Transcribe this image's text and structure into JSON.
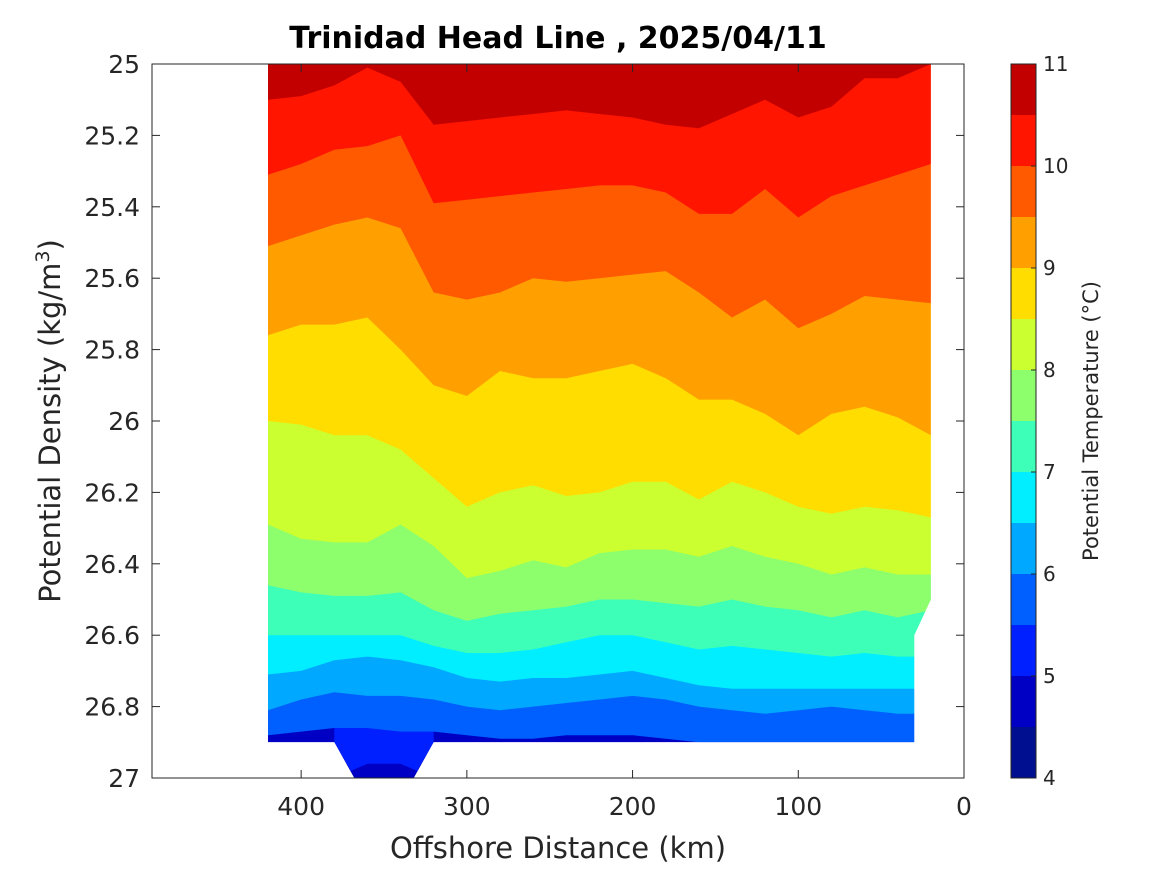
{
  "chart_data": {
    "type": "filled-contour",
    "title": "Trinidad Head Line , 2025/04/11",
    "xlabel": "Offshore Distance (km)",
    "ylabel_main": "Potential Density (kg/m",
    "ylabel_sup": "3",
    "ylabel_close": ")",
    "x_reversed": true,
    "y_reversed": true,
    "xlim": [
      0,
      490
    ],
    "ylim": [
      25,
      27
    ],
    "x_ticks": [
      400,
      300,
      200,
      100,
      0
    ],
    "y_ticks": [
      25,
      25.2,
      25.4,
      25.6,
      25.8,
      26,
      26.2,
      26.4,
      26.6,
      26.8,
      27
    ],
    "x_tick_labels": [
      "400",
      "300",
      "200",
      "100",
      "0"
    ],
    "y_tick_labels": [
      "25",
      "25.2",
      "25.4",
      "25.6",
      "25.8",
      "26",
      "26.2",
      "26.4",
      "26.6",
      "26.8",
      "27"
    ],
    "colorbar": {
      "label": "Potential Temperature (°C)",
      "min": 4,
      "max": 11,
      "step": 0.5,
      "tick_values": [
        4,
        5,
        6,
        7,
        8,
        9,
        10,
        11
      ],
      "tick_labels": [
        "4",
        "5",
        "6",
        "7",
        "8",
        "9",
        "10",
        "11"
      ],
      "colors": [
        "#000f8f",
        "#0000c4",
        "#0020ff",
        "#0060ff",
        "#00a8ff",
        "#00eeff",
        "#3effb8",
        "#8eff6c",
        "#ccff30",
        "#ffdd00",
        "#ffa000",
        "#ff5a00",
        "#ff1500",
        "#c30000"
      ]
    },
    "data_extent": {
      "offshore_km": [
        20,
        420
      ],
      "deep_dip_km": [
        320,
        380
      ],
      "deep_dip_bottom_density": 27.0,
      "main_bottom_density": 26.9
    },
    "bands": [
      {
        "temp_range": [
          10.5,
          11.0
        ],
        "color": "#c30000",
        "lower_boundary": [
          [
            420,
            25.1
          ],
          [
            400,
            25.09
          ],
          [
            380,
            25.06
          ],
          [
            360,
            25.01
          ],
          [
            340,
            25.05
          ],
          [
            320,
            25.17
          ],
          [
            300,
            25.16
          ],
          [
            280,
            25.15
          ],
          [
            260,
            25.14
          ],
          [
            240,
            25.13
          ],
          [
            220,
            25.14
          ],
          [
            200,
            25.15
          ],
          [
            180,
            25.17
          ],
          [
            160,
            25.18
          ],
          [
            140,
            25.14
          ],
          [
            120,
            25.1
          ],
          [
            100,
            25.15
          ],
          [
            80,
            25.12
          ],
          [
            60,
            25.04
          ],
          [
            40,
            25.04
          ],
          [
            20,
            25.0
          ]
        ]
      },
      {
        "temp_range": [
          10.0,
          10.5
        ],
        "color": "#ff1500",
        "lower_boundary": [
          [
            420,
            25.31
          ],
          [
            400,
            25.28
          ],
          [
            380,
            25.24
          ],
          [
            360,
            25.23
          ],
          [
            340,
            25.2
          ],
          [
            320,
            25.39
          ],
          [
            300,
            25.38
          ],
          [
            280,
            25.37
          ],
          [
            260,
            25.36
          ],
          [
            240,
            25.35
          ],
          [
            220,
            25.34
          ],
          [
            200,
            25.34
          ],
          [
            180,
            25.36
          ],
          [
            160,
            25.42
          ],
          [
            140,
            25.42
          ],
          [
            120,
            25.35
          ],
          [
            100,
            25.43
          ],
          [
            80,
            25.37
          ],
          [
            60,
            25.34
          ],
          [
            40,
            25.31
          ],
          [
            20,
            25.28
          ]
        ]
      },
      {
        "temp_range": [
          9.5,
          10.0
        ],
        "color": "#ff5a00",
        "lower_boundary": [
          [
            420,
            25.51
          ],
          [
            400,
            25.48
          ],
          [
            380,
            25.45
          ],
          [
            360,
            25.43
          ],
          [
            340,
            25.46
          ],
          [
            320,
            25.64
          ],
          [
            300,
            25.66
          ],
          [
            280,
            25.64
          ],
          [
            260,
            25.6
          ],
          [
            240,
            25.61
          ],
          [
            220,
            25.6
          ],
          [
            200,
            25.59
          ],
          [
            180,
            25.58
          ],
          [
            160,
            25.64
          ],
          [
            140,
            25.71
          ],
          [
            120,
            25.66
          ],
          [
            100,
            25.74
          ],
          [
            80,
            25.7
          ],
          [
            60,
            25.65
          ],
          [
            40,
            25.66
          ],
          [
            20,
            25.67
          ]
        ]
      },
      {
        "temp_range": [
          9.0,
          9.5
        ],
        "color": "#ffa000",
        "lower_boundary": [
          [
            420,
            25.76
          ],
          [
            400,
            25.73
          ],
          [
            380,
            25.73
          ],
          [
            360,
            25.71
          ],
          [
            340,
            25.8
          ],
          [
            320,
            25.9
          ],
          [
            300,
            25.93
          ],
          [
            280,
            25.86
          ],
          [
            260,
            25.88
          ],
          [
            240,
            25.88
          ],
          [
            220,
            25.86
          ],
          [
            200,
            25.84
          ],
          [
            180,
            25.88
          ],
          [
            160,
            25.94
          ],
          [
            140,
            25.94
          ],
          [
            120,
            25.98
          ],
          [
            100,
            26.04
          ],
          [
            80,
            25.98
          ],
          [
            60,
            25.96
          ],
          [
            40,
            25.99
          ],
          [
            20,
            26.04
          ]
        ]
      },
      {
        "temp_range": [
          8.5,
          9.0
        ],
        "color": "#ffdd00",
        "lower_boundary": [
          [
            420,
            26.0
          ],
          [
            400,
            26.01
          ],
          [
            380,
            26.04
          ],
          [
            360,
            26.04
          ],
          [
            340,
            26.08
          ],
          [
            320,
            26.16
          ],
          [
            300,
            26.24
          ],
          [
            280,
            26.2
          ],
          [
            260,
            26.18
          ],
          [
            240,
            26.21
          ],
          [
            220,
            26.2
          ],
          [
            200,
            26.17
          ],
          [
            180,
            26.17
          ],
          [
            160,
            26.22
          ],
          [
            140,
            26.17
          ],
          [
            120,
            26.2
          ],
          [
            100,
            26.24
          ],
          [
            80,
            26.26
          ],
          [
            60,
            26.24
          ],
          [
            40,
            26.25
          ],
          [
            20,
            26.27
          ]
        ]
      },
      {
        "temp_range": [
          8.0,
          8.5
        ],
        "color": "#ccff30",
        "lower_boundary": [
          [
            420,
            26.29
          ],
          [
            400,
            26.33
          ],
          [
            380,
            26.34
          ],
          [
            360,
            26.34
          ],
          [
            340,
            26.29
          ],
          [
            320,
            26.35
          ],
          [
            300,
            26.44
          ],
          [
            280,
            26.42
          ],
          [
            260,
            26.39
          ],
          [
            240,
            26.41
          ],
          [
            220,
            26.37
          ],
          [
            200,
            26.36
          ],
          [
            180,
            26.36
          ],
          [
            160,
            26.38
          ],
          [
            140,
            26.35
          ],
          [
            120,
            26.38
          ],
          [
            100,
            26.4
          ],
          [
            80,
            26.43
          ],
          [
            60,
            26.41
          ],
          [
            40,
            26.43
          ],
          [
            20,
            26.43
          ]
        ]
      },
      {
        "temp_range": [
          7.5,
          8.0
        ],
        "color": "#8eff6c",
        "lower_boundary": [
          [
            420,
            26.46
          ],
          [
            400,
            26.48
          ],
          [
            380,
            26.49
          ],
          [
            360,
            26.49
          ],
          [
            340,
            26.48
          ],
          [
            320,
            26.53
          ],
          [
            300,
            26.56
          ],
          [
            280,
            26.54
          ],
          [
            260,
            26.53
          ],
          [
            240,
            26.52
          ],
          [
            220,
            26.5
          ],
          [
            200,
            26.5
          ],
          [
            180,
            26.51
          ],
          [
            160,
            26.52
          ],
          [
            140,
            26.5
          ],
          [
            120,
            26.52
          ],
          [
            100,
            26.53
          ],
          [
            80,
            26.55
          ],
          [
            60,
            26.53
          ],
          [
            40,
            26.55
          ],
          [
            20,
            26.53
          ]
        ]
      },
      {
        "temp_range": [
          7.0,
          7.5
        ],
        "color": "#3effb8",
        "lower_boundary": [
          [
            420,
            26.6
          ],
          [
            400,
            26.6
          ],
          [
            380,
            26.6
          ],
          [
            360,
            26.6
          ],
          [
            340,
            26.6
          ],
          [
            320,
            26.63
          ],
          [
            300,
            26.65
          ],
          [
            280,
            26.65
          ],
          [
            260,
            26.64
          ],
          [
            240,
            26.62
          ],
          [
            220,
            26.6
          ],
          [
            200,
            26.6
          ],
          [
            180,
            26.62
          ],
          [
            160,
            26.64
          ],
          [
            140,
            26.63
          ],
          [
            120,
            26.64
          ],
          [
            100,
            26.65
          ],
          [
            80,
            26.66
          ],
          [
            60,
            26.65
          ],
          [
            40,
            26.66
          ],
          [
            20,
            26.66
          ]
        ]
      },
      {
        "temp_range": [
          6.5,
          7.0
        ],
        "color": "#00eeff",
        "lower_boundary": [
          [
            420,
            26.71
          ],
          [
            400,
            26.7
          ],
          [
            380,
            26.67
          ],
          [
            360,
            26.66
          ],
          [
            340,
            26.67
          ],
          [
            320,
            26.69
          ],
          [
            300,
            26.72
          ],
          [
            280,
            26.73
          ],
          [
            260,
            26.72
          ],
          [
            240,
            26.72
          ],
          [
            220,
            26.71
          ],
          [
            200,
            26.7
          ],
          [
            180,
            26.72
          ],
          [
            160,
            26.74
          ],
          [
            140,
            26.75
          ],
          [
            120,
            26.75
          ],
          [
            100,
            26.75
          ],
          [
            80,
            26.75
          ],
          [
            60,
            26.75
          ],
          [
            40,
            26.75
          ],
          [
            20,
            26.75
          ]
        ]
      },
      {
        "temp_range": [
          6.0,
          6.5
        ],
        "color": "#00a8ff",
        "lower_boundary": [
          [
            420,
            26.81
          ],
          [
            400,
            26.78
          ],
          [
            380,
            26.76
          ],
          [
            360,
            26.77
          ],
          [
            340,
            26.77
          ],
          [
            320,
            26.78
          ],
          [
            300,
            26.8
          ],
          [
            280,
            26.81
          ],
          [
            260,
            26.8
          ],
          [
            240,
            26.79
          ],
          [
            220,
            26.78
          ],
          [
            200,
            26.77
          ],
          [
            180,
            26.78
          ],
          [
            160,
            26.8
          ],
          [
            140,
            26.81
          ],
          [
            120,
            26.82
          ],
          [
            100,
            26.81
          ],
          [
            80,
            26.8
          ],
          [
            60,
            26.81
          ],
          [
            40,
            26.82
          ],
          [
            20,
            26.82
          ]
        ]
      },
      {
        "temp_range": [
          5.5,
          6.0
        ],
        "color": "#0060ff",
        "lower_boundary": [
          [
            420,
            26.88
          ],
          [
            400,
            26.87
          ],
          [
            380,
            26.86
          ],
          [
            360,
            26.86
          ],
          [
            340,
            26.87
          ],
          [
            320,
            26.87
          ],
          [
            300,
            26.88
          ],
          [
            280,
            26.89
          ],
          [
            260,
            26.89
          ],
          [
            240,
            26.88
          ],
          [
            220,
            26.88
          ],
          [
            200,
            26.88
          ],
          [
            180,
            26.89
          ],
          [
            160,
            26.9
          ],
          [
            140,
            26.9
          ],
          [
            120,
            26.9
          ],
          [
            100,
            26.9
          ],
          [
            80,
            26.9
          ],
          [
            60,
            26.9
          ],
          [
            40,
            26.9
          ],
          [
            20,
            26.9
          ]
        ]
      },
      {
        "temp_range": [
          5.0,
          5.5
        ],
        "color": "#0020ff",
        "lower_boundary": [
          [
            380,
            26.9
          ],
          [
            370,
            26.98
          ],
          [
            360,
            26.96
          ],
          [
            340,
            26.96
          ],
          [
            330,
            26.98
          ],
          [
            320,
            26.9
          ]
        ]
      },
      {
        "temp_range": [
          4.5,
          5.0
        ],
        "color": "#0000c4",
        "lower_boundary": [
          [
            370,
            27.0
          ],
          [
            320,
            27.0
          ]
        ]
      }
    ]
  }
}
